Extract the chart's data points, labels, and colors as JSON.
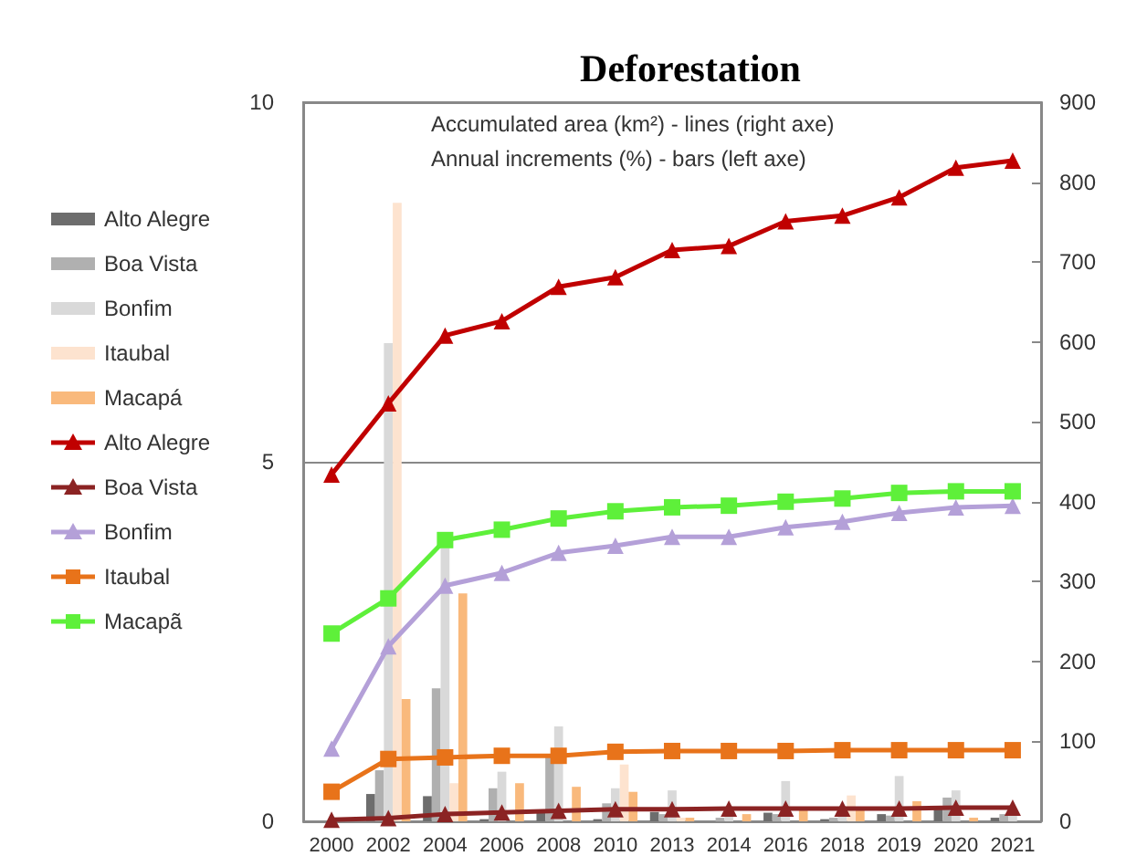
{
  "chart_data": {
    "type": "bar",
    "title": "Deforestation",
    "annotations": [
      "Accumulated area (km²) - lines (right axe)",
      "Annual increments (%) - bars (left axe)"
    ],
    "categories": [
      "2000",
      "2002",
      "2004",
      "2006",
      "2008",
      "2010",
      "2013",
      "2014",
      "2016",
      "2018",
      "2019",
      "2020",
      "2021"
    ],
    "series": [
      {
        "name": "Alto Alegre",
        "color": "#6d6d6d",
        "values": [
          0,
          0.38,
          0.35,
          0.03,
          0.13,
          0.03,
          0.13,
          0,
          0.12,
          0.03,
          0.1,
          0.2,
          0.05
        ]
      },
      {
        "name": "Boa Vista",
        "color": "#b0b0b0",
        "values": [
          0,
          0.71,
          1.85,
          0.46,
          0.89,
          0.25,
          0.1,
          0.05,
          0.1,
          0.05,
          0.08,
          0.33,
          0.1
        ]
      },
      {
        "name": "Bonfim",
        "color": "#d9d9d9",
        "values": [
          0,
          6.65,
          3.8,
          0.69,
          1.32,
          0.46,
          0.43,
          0.1,
          0.56,
          0.1,
          0.63,
          0.43,
          0.13
        ]
      },
      {
        "name": "Itaubal",
        "color": "#fde3cf",
        "values": [
          0,
          8.6,
          0.53,
          0,
          0,
          0.79,
          0.05,
          0,
          0,
          0.36,
          0,
          0,
          0
        ]
      },
      {
        "name": "Macapá",
        "color": "#f9b97c",
        "values": [
          0,
          1.7,
          3.17,
          0.53,
          0.48,
          0.41,
          0.05,
          0.1,
          0.17,
          0.2,
          0.28,
          0.05,
          0
        ]
      },
      {
        "name": "Alto Alegre",
        "type": "line",
        "axis": "y2",
        "marker": "triangle",
        "color": "#c00000",
        "values": [
          434,
          523,
          608,
          626,
          669,
          681,
          715,
          720,
          751,
          758,
          781,
          818,
          827
        ]
      },
      {
        "name": "Boa Vista",
        "type": "line",
        "axis": "y2",
        "marker": "triangle",
        "color": "#8b2323",
        "values": [
          2,
          4,
          9,
          11,
          13,
          15,
          15,
          16,
          16,
          16,
          16,
          17,
          17
        ]
      },
      {
        "name": "Bonfim",
        "type": "line",
        "axis": "y2",
        "marker": "triangle",
        "color": "#b4a0d8",
        "values": [
          91,
          219,
          295,
          311,
          336,
          345,
          356,
          356,
          368,
          375,
          386,
          393,
          395
        ]
      },
      {
        "name": "Itaubal",
        "type": "line",
        "axis": "y2",
        "marker": "square",
        "color": "#e8731a",
        "values": [
          37,
          78,
          80,
          82,
          82,
          87,
          88,
          88,
          88,
          89,
          89,
          89,
          89
        ]
      },
      {
        "name": "Macapã",
        "type": "line",
        "axis": "y2",
        "marker": "square",
        "color": "#5ef03a",
        "values": [
          235,
          279,
          352,
          365,
          379,
          388,
          393,
          395,
          400,
          404,
          411,
          413,
          413
        ]
      }
    ],
    "ylim": [
      0,
      10
    ],
    "yticks": [
      0,
      5,
      10
    ],
    "y2lim": [
      0,
      900
    ],
    "y2ticks": [
      0,
      100,
      200,
      300,
      400,
      500,
      600,
      700,
      800,
      900
    ],
    "grid": "y",
    "legend": "left"
  }
}
